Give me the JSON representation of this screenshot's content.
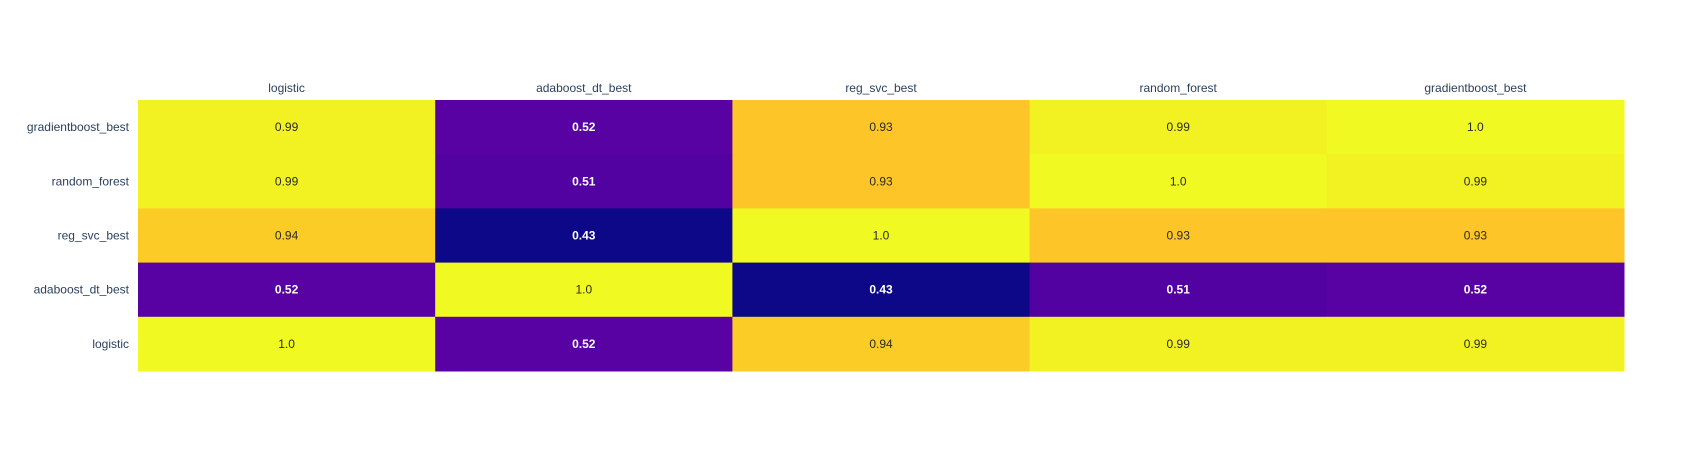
{
  "chart_data": {
    "type": "heatmap",
    "title": "",
    "xlabel": "",
    "ylabel": "",
    "x_categories": [
      "logistic",
      "adaboost_dt_best",
      "reg_svc_best",
      "random_forest",
      "gradientboost_best"
    ],
    "y_categories": [
      "gradientboost_best",
      "random_forest",
      "reg_svc_best",
      "adaboost_dt_best",
      "logistic"
    ],
    "z": [
      [
        0.99,
        0.52,
        0.93,
        0.99,
        1.0
      ],
      [
        0.99,
        0.51,
        0.93,
        1.0,
        0.99
      ],
      [
        0.94,
        0.43,
        1.0,
        0.93,
        0.93
      ],
      [
        0.52,
        1.0,
        0.43,
        0.51,
        0.52
      ],
      [
        1.0,
        0.52,
        0.94,
        0.99,
        0.99
      ]
    ],
    "cell_text": [
      [
        "0.99",
        "0.52",
        "0.93",
        "0.99",
        "1.0"
      ],
      [
        "0.99",
        "0.51",
        "0.93",
        "1.0",
        "0.99"
      ],
      [
        "0.94",
        "0.43",
        "1.0",
        "0.93",
        "0.93"
      ],
      [
        "0.52",
        "1.0",
        "0.43",
        "0.51",
        "0.52"
      ],
      [
        "1.0",
        "0.52",
        "0.94",
        "0.99",
        "0.99"
      ]
    ],
    "zlim": [
      0.43,
      1.0
    ],
    "colorscale": "plasma",
    "x_axis_position": "top",
    "grid": false,
    "legend": "none"
  }
}
